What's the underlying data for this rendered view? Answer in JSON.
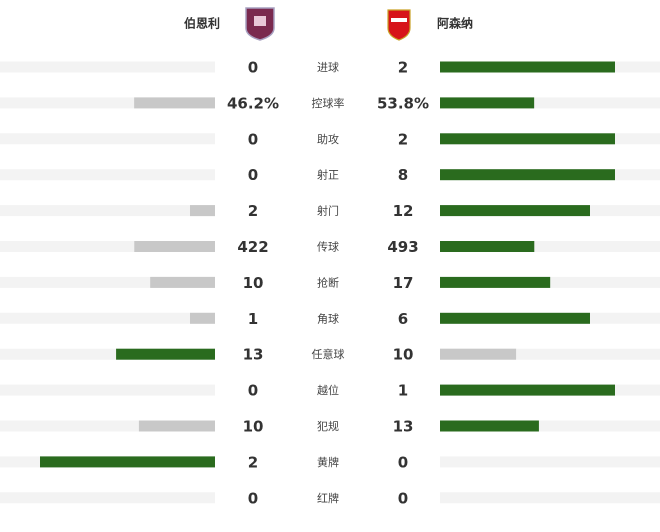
{
  "teams": {
    "home": "伯恩利",
    "away": "阿森纳"
  },
  "stats": [
    {
      "name": "进球",
      "home": 0,
      "away": 2
    },
    {
      "name": "控球率",
      "home": {
        "value": 46.2,
        "label": "46.2%"
      },
      "away": {
        "value": 53.8,
        "label": "53.8%"
      }
    },
    {
      "name": "助攻",
      "home": 0,
      "away": 2
    },
    {
      "name": "射正",
      "home": 0,
      "away": 8
    },
    {
      "name": "射门",
      "home": 2,
      "away": 12
    },
    {
      "name": "传球",
      "home": 422,
      "away": 493
    },
    {
      "name": "抢断",
      "home": 10,
      "away": 17
    },
    {
      "name": "角球",
      "home": 1,
      "away": 6
    },
    {
      "name": "任意球",
      "home": 13,
      "away": 10
    },
    {
      "name": "越位",
      "home": 0,
      "away": 1
    },
    {
      "name": "犯规",
      "home": 10,
      "away": 13
    },
    {
      "name": "黄牌",
      "home": 2,
      "away": 0
    },
    {
      "name": "红牌",
      "home": 0,
      "away": 0
    }
  ]
}
